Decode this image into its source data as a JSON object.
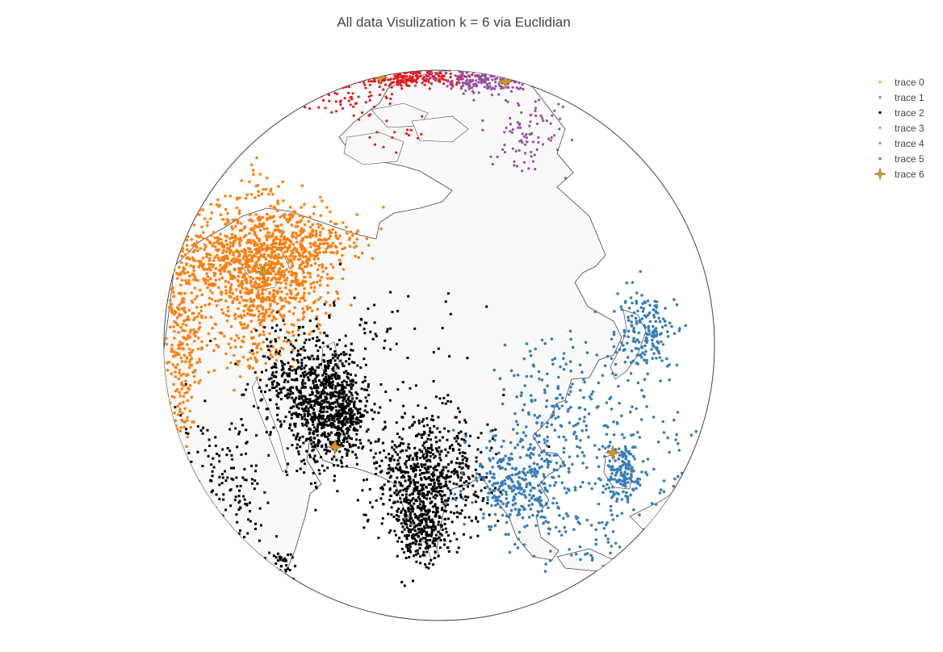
{
  "title": "All data Visulization k = 6 via Euclidian",
  "legend": [
    {
      "name": "trace 0",
      "color": "#ff7f0e",
      "symbol": "circle"
    },
    {
      "name": "trace 1",
      "color": "#984ea3",
      "symbol": "circle"
    },
    {
      "name": "trace 2",
      "color": "#000000",
      "symbol": "square"
    },
    {
      "name": "trace 3",
      "color": "#4daf4a",
      "symbol": "circle"
    },
    {
      "name": "trace 4",
      "color": "#377eb8",
      "symbol": "circle"
    },
    {
      "name": "trace 5",
      "color": "#e41a1c",
      "symbol": "circle"
    },
    {
      "name": "trace 6",
      "color": "#d4962a",
      "symbol": "star4"
    }
  ],
  "map": {
    "projection": "orthographic",
    "ocean_color": "#ffffff",
    "land_color": "#f9f9f9",
    "coastline_color": "#444444"
  }
}
